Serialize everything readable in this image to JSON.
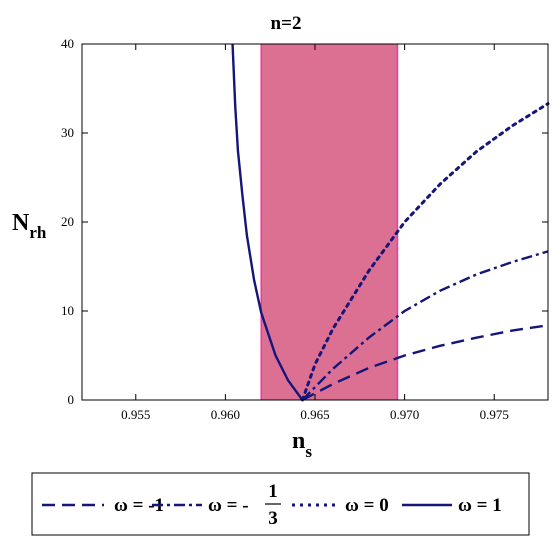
{
  "chart_data": {
    "type": "line",
    "title": "n=2",
    "xlabel": {
      "main": "n",
      "sub": "s"
    },
    "ylabel": {
      "main": "N",
      "sub": "rh"
    },
    "xlim": [
      0.952,
      0.978
    ],
    "ylim": [
      0,
      40
    ],
    "xticks": [
      "0.955",
      "0.960",
      "0.965",
      "0.970",
      "0.975"
    ],
    "xtick_values": [
      0.955,
      0.96,
      0.965,
      0.97,
      0.975
    ],
    "yticks": [
      "0",
      "10",
      "20",
      "30",
      "40"
    ],
    "ytick_values": [
      0,
      10,
      20,
      30,
      40
    ],
    "grid": false,
    "band": {
      "x_range": [
        0.962,
        0.9696
      ],
      "color": "#db7093",
      "edge_color": "#ff2fa0"
    },
    "line_color": "#15157a",
    "series": [
      {
        "name": "ω = -1",
        "legend": {
          "prefix": "ω = ",
          "value": "-1"
        },
        "style": "dashed",
        "points": [
          [
            0.9643,
            0
          ],
          [
            0.966,
            1.8
          ],
          [
            0.968,
            3.6
          ],
          [
            0.97,
            5.0
          ],
          [
            0.972,
            6.1
          ],
          [
            0.974,
            7.0
          ],
          [
            0.976,
            7.8
          ],
          [
            0.978,
            8.4
          ]
        ]
      },
      {
        "name": "ω = -1/3",
        "legend": {
          "prefix": "ω = -",
          "numerator": "1",
          "denominator": "3"
        },
        "style": "dashdot",
        "points": [
          [
            0.9643,
            0
          ],
          [
            0.966,
            3.5
          ],
          [
            0.968,
            7.0
          ],
          [
            0.97,
            10.0
          ],
          [
            0.972,
            12.3
          ],
          [
            0.974,
            14.1
          ],
          [
            0.976,
            15.5
          ],
          [
            0.978,
            16.7
          ]
        ]
      },
      {
        "name": "ω = 0",
        "legend": {
          "prefix": "ω = ",
          "value": "0"
        },
        "style": "dotted",
        "points": [
          [
            0.9643,
            0
          ],
          [
            0.965,
            4.0
          ],
          [
            0.966,
            8.0
          ],
          [
            0.968,
            14.5
          ],
          [
            0.97,
            20.0
          ],
          [
            0.972,
            24.3
          ],
          [
            0.974,
            27.9
          ],
          [
            0.976,
            30.8
          ],
          [
            0.978,
            33.3
          ]
        ]
      },
      {
        "name": "ω = 1",
        "legend": {
          "prefix": "ω = ",
          "value": "1"
        },
        "style": "solid",
        "points": [
          [
            0.9643,
            0
          ],
          [
            0.9635,
            2.2
          ],
          [
            0.9628,
            5.0
          ],
          [
            0.962,
            9.8
          ],
          [
            0.9616,
            13.5
          ],
          [
            0.9612,
            18.5
          ],
          [
            0.96095,
            23.0
          ],
          [
            0.9607,
            28.0
          ],
          [
            0.96055,
            33.0
          ],
          [
            0.9604,
            40.0
          ]
        ]
      }
    ],
    "legend_position": "bottom"
  }
}
